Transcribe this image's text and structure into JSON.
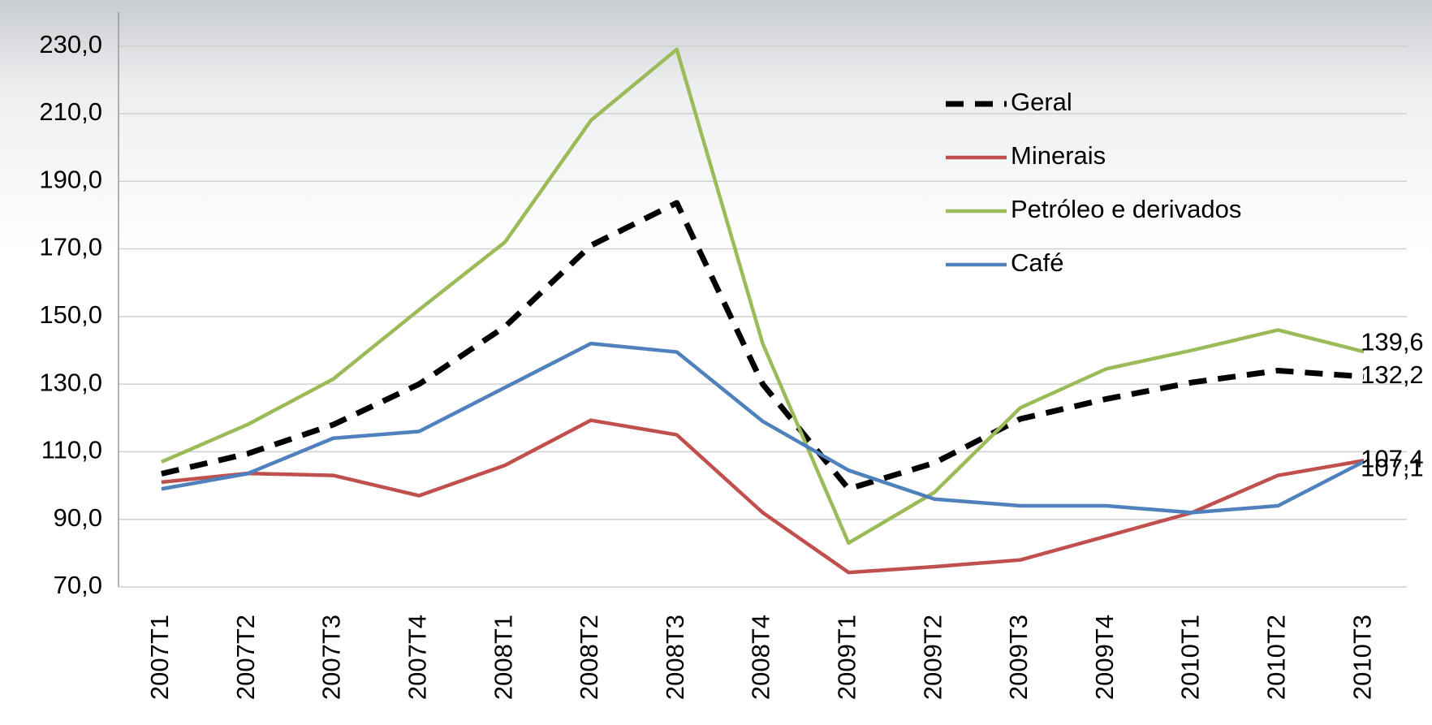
{
  "chart_data": {
    "type": "line",
    "categories": [
      "2007T1",
      "2007T2",
      "2007T3",
      "2007T4",
      "2008T1",
      "2008T2",
      "2008T3",
      "2008T4",
      "2009T1",
      "2009T2",
      "2009T3",
      "2009T4",
      "2010T1",
      "2010T2",
      "2010T3"
    ],
    "series": [
      {
        "name": "Geral",
        "color": "#000000",
        "dashed": true,
        "values": [
          103.5,
          109.4,
          118,
          130,
          147,
          171,
          183.6,
          130,
          99,
          106.7,
          119.7,
          125.6,
          130.5,
          134,
          132.2
        ],
        "value_labels": [
          null,
          null,
          null,
          null,
          null,
          null,
          null,
          null,
          null,
          null,
          null,
          null,
          null,
          null,
          "132,2"
        ]
      },
      {
        "name": "Minerais",
        "color": "#c0504d",
        "values": [
          101,
          103.6,
          103,
          97,
          106,
          119.3,
          115,
          92,
          74.3,
          76,
          78,
          85,
          92,
          103,
          107.4
        ],
        "value_labels": [
          null,
          null,
          null,
          null,
          null,
          null,
          null,
          null,
          null,
          null,
          null,
          null,
          null,
          null,
          "107,4"
        ]
      },
      {
        "name": "Petróleo e derivados",
        "color": "#9bbb59",
        "values": [
          107,
          118,
          131.5,
          152,
          172,
          208,
          229,
          142,
          83,
          98,
          123,
          134.5,
          140,
          146,
          139.6
        ],
        "value_labels": [
          null,
          null,
          null,
          null,
          null,
          null,
          null,
          null,
          null,
          null,
          null,
          null,
          null,
          null,
          "139,6"
        ]
      },
      {
        "name": "Café",
        "color": "#4f81bd",
        "values": [
          99,
          103.5,
          114,
          116,
          129,
          142,
          139.5,
          119,
          104.5,
          96,
          94,
          94,
          92,
          94,
          107.1
        ],
        "value_labels": [
          null,
          null,
          null,
          null,
          null,
          null,
          null,
          null,
          null,
          null,
          null,
          null,
          null,
          null,
          "107,1"
        ]
      }
    ],
    "ylim": [
      70,
      240
    ],
    "yticks": [
      {
        "value": 70,
        "label": "70,0"
      },
      {
        "value": 90,
        "label": "90,0"
      },
      {
        "value": 110,
        "label": "110,0"
      },
      {
        "value": 130,
        "label": "130,0"
      },
      {
        "value": 150,
        "label": "150,0"
      },
      {
        "value": 170,
        "label": "170,0"
      },
      {
        "value": 190,
        "label": "190,0"
      },
      {
        "value": 210,
        "label": "210,0"
      },
      {
        "value": 230,
        "label": "230,0"
      }
    ],
    "grid": true,
    "legend": "top-right"
  }
}
